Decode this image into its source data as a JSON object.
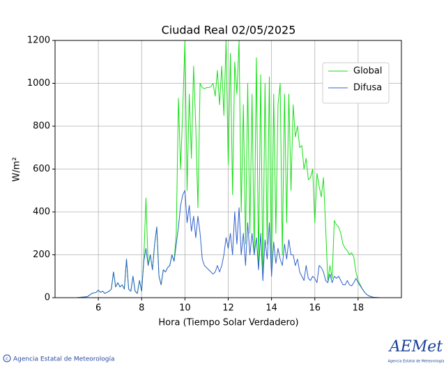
{
  "chart_data": {
    "type": "line",
    "title": "Ciudad Real 02/05/2025",
    "x_label": "Hora (Tiempo Solar Verdadero)",
    "y_label": "W/m²",
    "xlim": [
      4,
      20
    ],
    "xticks": [
      6,
      8,
      10,
      12,
      14,
      16,
      18
    ],
    "ylim": [
      0,
      1200
    ],
    "yticks": [
      0,
      200,
      400,
      600,
      800,
      1000,
      1200
    ],
    "grid": true,
    "legend": "upper right",
    "x": [
      4,
      5,
      5.5,
      5.7,
      5.9,
      6,
      6.1,
      6.2,
      6.3,
      6.4,
      6.5,
      6.6,
      6.7,
      6.8,
      6.9,
      7,
      7.1,
      7.2,
      7.3,
      7.4,
      7.5,
      7.6,
      7.7,
      7.8,
      7.9,
      8,
      8.1,
      8.2,
      8.3,
      8.4,
      8.5,
      8.6,
      8.7,
      8.8,
      8.9,
      9,
      9.1,
      9.2,
      9.3,
      9.4,
      9.5,
      9.6,
      9.7,
      9.8,
      9.9,
      10,
      10.1,
      10.2,
      10.3,
      10.4,
      10.5,
      10.6,
      10.7,
      10.8,
      10.9,
      11,
      11.1,
      11.2,
      11.3,
      11.4,
      11.5,
      11.6,
      11.7,
      11.8,
      11.9,
      12,
      12.1,
      12.2,
      12.3,
      12.4,
      12.5,
      12.6,
      12.7,
      12.8,
      12.9,
      13,
      13.1,
      13.2,
      13.3,
      13.4,
      13.5,
      13.6,
      13.7,
      13.8,
      13.9,
      14,
      14.1,
      14.2,
      14.3,
      14.4,
      14.5,
      14.6,
      14.7,
      14.8,
      14.9,
      15,
      15.1,
      15.2,
      15.3,
      15.4,
      15.5,
      15.6,
      15.7,
      15.8,
      15.9,
      16,
      16.1,
      16.2,
      16.3,
      16.4,
      16.5,
      16.6,
      16.7,
      16.8,
      16.9,
      17,
      17.1,
      17.2,
      17.3,
      17.4,
      17.5,
      17.6,
      17.7,
      17.8,
      17.9,
      18,
      18.1,
      18.2,
      18.3,
      18.4,
      18.5,
      18.7,
      19,
      20
    ],
    "series": [
      {
        "name": "Global",
        "color": "#11e011",
        "values": [
          0,
          0,
          5,
          20,
          25,
          35,
          25,
          30,
          20,
          25,
          30,
          40,
          120,
          50,
          70,
          50,
          60,
          40,
          180,
          40,
          30,
          100,
          30,
          20,
          80,
          30,
          180,
          465,
          150,
          200,
          130,
          250,
          330,
          100,
          60,
          130,
          120,
          140,
          150,
          200,
          170,
          300,
          930,
          600,
          880,
          1200,
          500,
          950,
          650,
          1080,
          800,
          420,
          1000,
          980,
          975,
          980,
          980,
          985,
          1000,
          940,
          1060,
          900,
          1080,
          850,
          1200,
          620,
          1140,
          480,
          1100,
          950,
          1200,
          400,
          900,
          250,
          1000,
          300,
          950,
          200,
          1120,
          150,
          1040,
          80,
          1000,
          250,
          1030,
          100,
          950,
          300,
          900,
          1000,
          200,
          950,
          350,
          950,
          500,
          900,
          750,
          800,
          700,
          710,
          600,
          650,
          550,
          560,
          600,
          350,
          580,
          520,
          470,
          560,
          330,
          80,
          150,
          90,
          360,
          340,
          330,
          300,
          250,
          230,
          220,
          200,
          210,
          190,
          120,
          80,
          60,
          40,
          25,
          15,
          8,
          2,
          0,
          0
        ]
      },
      {
        "name": "Difusa",
        "color": "#3060cc",
        "values": [
          0,
          0,
          5,
          20,
          25,
          35,
          25,
          30,
          20,
          25,
          30,
          40,
          120,
          50,
          70,
          50,
          60,
          40,
          180,
          40,
          30,
          100,
          30,
          20,
          80,
          30,
          170,
          230,
          150,
          200,
          130,
          250,
          330,
          100,
          60,
          130,
          120,
          140,
          150,
          200,
          170,
          250,
          330,
          430,
          480,
          500,
          350,
          430,
          310,
          380,
          280,
          380,
          300,
          180,
          150,
          140,
          130,
          120,
          110,
          120,
          150,
          120,
          150,
          200,
          280,
          230,
          300,
          200,
          400,
          250,
          420,
          200,
          300,
          150,
          350,
          200,
          300,
          200,
          280,
          130,
          300,
          80,
          270,
          180,
          350,
          100,
          260,
          160,
          230,
          180,
          150,
          250,
          180,
          270,
          200,
          200,
          150,
          180,
          120,
          100,
          80,
          150,
          90,
          80,
          100,
          90,
          70,
          150,
          140,
          120,
          80,
          70,
          110,
          70,
          100,
          90,
          100,
          80,
          60,
          60,
          80,
          60,
          55,
          70,
          90,
          70,
          55,
          40,
          25,
          15,
          8,
          2,
          0,
          0
        ]
      }
    ]
  },
  "footer": {
    "credit": "Agencia Estatal de Meteorología",
    "logo": "AEMet",
    "logo_subtitle": "Agencia Estatal de Meteorología"
  }
}
